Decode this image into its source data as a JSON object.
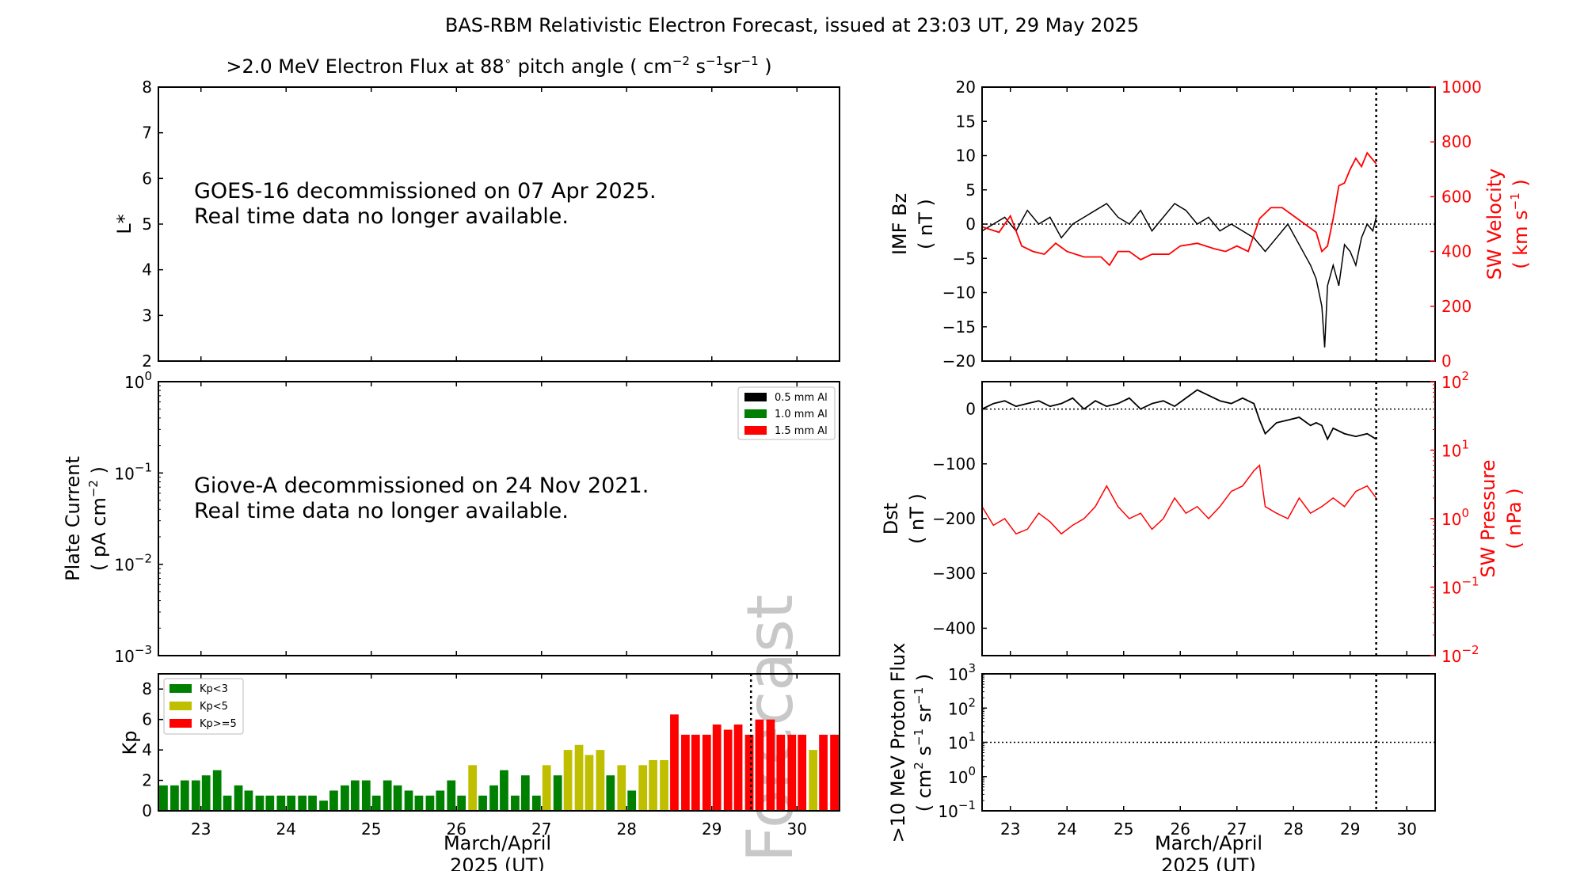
{
  "figure": {
    "title": "BAS-RBM Relativistic Electron Forecast, issued at 23:03 UT, 29 May 2025",
    "xlabel_line1": "March/April",
    "xlabel_line2": "2025 (UT)",
    "x_ticks": [
      "23",
      "24",
      "25",
      "26",
      "27",
      "28",
      "29",
      "30"
    ]
  },
  "colors": {
    "black": "#000000",
    "red": "#ff0000",
    "green": "#008000",
    "yellow": "#bfbf00",
    "watermark": "#c8c8c8"
  },
  "chart_data": [
    {
      "id": "electron_flux",
      "type": "heatmap",
      "title_prefix": ">2.0 MeV Electron Flux at 88",
      "title_deg": "∘",
      "title_suffix_pitch": " pitch angle ( cm",
      "title_exp1": "−2",
      "title_s": " s",
      "title_exp2": "−1",
      "title_sr": "sr",
      "title_exp3": "−1",
      "title_end": " )",
      "ylabel": "L*",
      "ylim": [
        2,
        8
      ],
      "yticks": [
        "2",
        "3",
        "4",
        "5",
        "6",
        "7",
        "8"
      ],
      "message_line1": "GOES-16 decommissioned on 07 Apr 2025.",
      "message_line2": "Real time data no longer available."
    },
    {
      "id": "plate_current",
      "type": "line",
      "ylabel_line1": "Plate Current",
      "ylabel_line2_a": "( pA cm",
      "ylabel_line2_exp": "−2",
      "ylabel_line2_b": " )",
      "yscale": "log",
      "ylim": [
        0.001,
        1
      ],
      "ytick_base": "10",
      "ytick_exps": [
        "−3",
        "−2",
        "−1",
        "0"
      ],
      "legend": [
        "0.5 mm Al",
        "1.0 mm Al",
        "1.5 mm Al"
      ],
      "legend_location": "top-right",
      "message_line1": "Giove-A decommissioned on 24 Nov 2021.",
      "message_line2": "Real time data no longer available."
    },
    {
      "id": "kp",
      "type": "bar",
      "ylabel": "Kp",
      "ylim": [
        0,
        9
      ],
      "yticks": [
        "0",
        "2",
        "4",
        "6",
        "8"
      ],
      "xlim": [
        22.5,
        30.5
      ],
      "bar_width_days": 0.1,
      "legend": [
        "Kp<3",
        "Kp<5",
        "Kp>=5"
      ],
      "legend_location": "top-left",
      "now_line_x": 29.46,
      "watermark": "Forecast",
      "x": [
        22.56,
        22.69,
        22.81,
        22.94,
        23.06,
        23.19,
        23.31,
        23.44,
        23.56,
        23.69,
        23.81,
        23.94,
        24.06,
        24.19,
        24.31,
        24.44,
        24.56,
        24.69,
        24.81,
        24.94,
        25.06,
        25.19,
        25.31,
        25.44,
        25.56,
        25.69,
        25.81,
        25.94,
        26.06,
        26.19,
        26.31,
        26.44,
        26.56,
        26.69,
        26.81,
        26.94,
        27.06,
        27.19,
        27.31,
        27.44,
        27.56,
        27.69,
        27.81,
        27.94,
        28.06,
        28.19,
        28.31,
        28.44,
        28.56,
        28.69,
        28.81,
        28.94,
        29.06,
        29.19,
        29.31,
        29.44,
        29.56,
        29.69,
        29.81,
        29.94,
        30.06,
        30.19,
        30.31,
        30.44
      ],
      "values": [
        1.67,
        1.67,
        2.0,
        2.0,
        2.33,
        2.67,
        1.0,
        1.67,
        1.33,
        1.0,
        1.0,
        1.0,
        1.0,
        1.0,
        1.0,
        0.67,
        1.33,
        1.67,
        2.0,
        2.0,
        1.0,
        2.0,
        1.67,
        1.33,
        1.0,
        1.0,
        1.33,
        2.0,
        1.0,
        3.0,
        1.0,
        1.67,
        2.67,
        1.0,
        2.33,
        1.0,
        3.0,
        2.33,
        4.0,
        4.33,
        3.67,
        4.0,
        2.33,
        3.0,
        1.33,
        3.0,
        3.33,
        3.33,
        6.33,
        5.0,
        5.0,
        5.0,
        5.67,
        5.33,
        5.67,
        5.0,
        6.0,
        6.0,
        5.0,
        5.0,
        5.0,
        4.0,
        5.0,
        5.0
      ]
    },
    {
      "id": "imf_sw_velocity",
      "type": "line",
      "ylabel_left_line1": "IMF Bz",
      "ylabel_left_line2": "( nT )",
      "ylim_left": [
        -20,
        20
      ],
      "yticks_left": [
        "−20",
        "−15",
        "−10",
        "−5",
        "0",
        "5",
        "10",
        "15",
        "20"
      ],
      "ylabel_right_line1": "SW Velocity",
      "ylabel_right_line2_a": "( km s",
      "ylabel_right_line2_exp": "−1",
      "ylabel_right_line2_b": " )",
      "ylim_right": [
        0,
        1000
      ],
      "yticks_right": [
        "0",
        "200",
        "400",
        "600",
        "800",
        "1000"
      ],
      "xlim": [
        22.5,
        30.5
      ],
      "now_line_x": 29.46,
      "series": [
        {
          "axis": "left",
          "color": "#000000",
          "x": [
            22.5,
            22.7,
            22.9,
            23.1,
            23.3,
            23.5,
            23.7,
            23.9,
            24.1,
            24.3,
            24.5,
            24.7,
            24.9,
            25.1,
            25.3,
            25.5,
            25.7,
            25.9,
            26.1,
            26.3,
            26.5,
            26.7,
            26.9,
            27.1,
            27.3,
            27.5,
            27.7,
            27.9,
            28.1,
            28.3,
            28.4,
            28.5,
            28.55,
            28.6,
            28.7,
            28.8,
            28.9,
            29.0,
            29.1,
            29.2,
            29.3,
            29.4,
            29.46
          ],
          "values": [
            -1,
            0,
            1,
            -1,
            2,
            0,
            1,
            -2,
            0,
            1,
            2,
            3,
            1,
            0,
            2,
            -1,
            1,
            3,
            2,
            0,
            1,
            -1,
            0,
            -1,
            -2,
            -4,
            -2,
            0,
            -3,
            -6,
            -8,
            -12,
            -18,
            -9,
            -6,
            -9,
            -3,
            -4,
            -6,
            -2,
            0,
            -1,
            1
          ]
        },
        {
          "axis": "right",
          "color": "#ff0000",
          "x": [
            22.5,
            22.8,
            23.0,
            23.2,
            23.4,
            23.6,
            23.8,
            24.0,
            24.3,
            24.6,
            24.75,
            24.9,
            25.1,
            25.3,
            25.5,
            25.8,
            26.0,
            26.3,
            26.6,
            26.8,
            27.0,
            27.2,
            27.4,
            27.6,
            27.8,
            28.0,
            28.2,
            28.4,
            28.5,
            28.6,
            28.7,
            28.8,
            28.9,
            29.0,
            29.1,
            29.2,
            29.3,
            29.46
          ],
          "values": [
            490,
            470,
            530,
            420,
            400,
            390,
            430,
            400,
            380,
            380,
            350,
            400,
            400,
            370,
            390,
            390,
            420,
            430,
            410,
            400,
            420,
            400,
            520,
            560,
            560,
            530,
            500,
            470,
            400,
            420,
            520,
            640,
            650,
            700,
            740,
            710,
            760,
            720
          ]
        }
      ]
    },
    {
      "id": "dst_sw_pressure",
      "type": "line",
      "ylabel_left_line1": "Dst",
      "ylabel_left_line2": "( nT )",
      "ylim_left": [
        -450,
        50
      ],
      "yticks_left": [
        "−400",
        "−300",
        "−200",
        "−100",
        "0"
      ],
      "ylabel_right_line1": "SW Pressure",
      "ylabel_right_line2": "( nPa )",
      "yscale_right": "log",
      "ylim_right": [
        0.01,
        100
      ],
      "ytick_base": "10",
      "yticks_right_exps": [
        "−2",
        "−1",
        "0",
        "1",
        "2"
      ],
      "xlim": [
        22.5,
        30.5
      ],
      "now_line_x": 29.46,
      "series": [
        {
          "axis": "left",
          "color": "#000000",
          "x": [
            22.5,
            22.7,
            22.9,
            23.1,
            23.3,
            23.5,
            23.7,
            23.9,
            24.1,
            24.3,
            24.5,
            24.7,
            24.9,
            25.1,
            25.3,
            25.5,
            25.7,
            25.9,
            26.1,
            26.3,
            26.5,
            26.7,
            26.9,
            27.1,
            27.3,
            27.4,
            27.5,
            27.7,
            27.9,
            28.1,
            28.3,
            28.4,
            28.5,
            28.6,
            28.7,
            28.9,
            29.1,
            29.3,
            29.46
          ],
          "values": [
            0,
            10,
            15,
            5,
            10,
            15,
            5,
            10,
            20,
            0,
            15,
            5,
            10,
            20,
            0,
            10,
            15,
            5,
            20,
            35,
            25,
            15,
            10,
            20,
            10,
            -20,
            -45,
            -25,
            -20,
            -15,
            -30,
            -25,
            -30,
            -55,
            -35,
            -45,
            -50,
            -45,
            -55
          ]
        },
        {
          "axis": "right",
          "color": "#ff0000",
          "x": [
            22.5,
            22.7,
            22.9,
            23.1,
            23.3,
            23.5,
            23.7,
            23.9,
            24.1,
            24.3,
            24.5,
            24.7,
            24.9,
            25.1,
            25.3,
            25.5,
            25.7,
            25.9,
            26.1,
            26.3,
            26.5,
            26.7,
            26.9,
            27.1,
            27.3,
            27.4,
            27.5,
            27.7,
            27.9,
            28.1,
            28.3,
            28.5,
            28.7,
            28.9,
            29.1,
            29.3,
            29.46
          ],
          "values": [
            1.5,
            0.8,
            1.0,
            0.6,
            0.7,
            1.2,
            0.9,
            0.6,
            0.8,
            1.0,
            1.5,
            3.0,
            1.5,
            1.0,
            1.2,
            0.7,
            1.0,
            2.0,
            1.2,
            1.5,
            1.0,
            1.5,
            2.5,
            3.0,
            5.0,
            6.0,
            1.5,
            1.2,
            1.0,
            2.0,
            1.2,
            1.5,
            2.0,
            1.5,
            2.5,
            3.0,
            2.0
          ]
        }
      ]
    },
    {
      "id": "proton_flux",
      "type": "line",
      "ylabel_line1": ">10 MeV Proton Flux",
      "ylabel_line2_a": "( cm",
      "ylabel_line2_exp1": "2",
      "ylabel_line2_b": " s",
      "ylabel_line2_exp2": "−1",
      "ylabel_line2_c": " sr",
      "ylabel_line2_exp3": "−1",
      "ylabel_line2_d": " )",
      "yscale": "log",
      "ylim": [
        0.1,
        1000
      ],
      "ytick_base": "10",
      "ytick_exps": [
        "−1",
        "0",
        "1",
        "2",
        "3"
      ],
      "threshold": 10,
      "xlim": [
        22.5,
        30.5
      ],
      "now_line_x": 29.46
    }
  ]
}
